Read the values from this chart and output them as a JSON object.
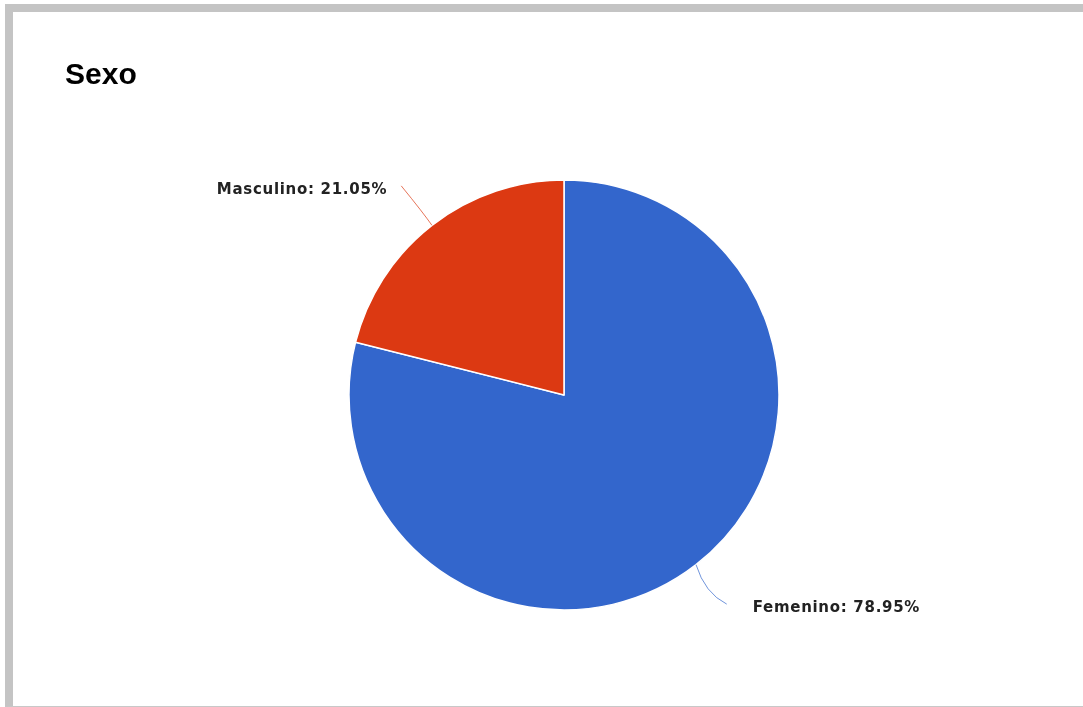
{
  "chart_data": {
    "type": "pie",
    "title": "Sexo",
    "categories": [
      "Femenino",
      "Masculino"
    ],
    "values": [
      78.95,
      21.05
    ],
    "colors": [
      "#3366cc",
      "#dc3912"
    ],
    "value_labels": [
      "78.95%",
      "21.05%"
    ]
  }
}
